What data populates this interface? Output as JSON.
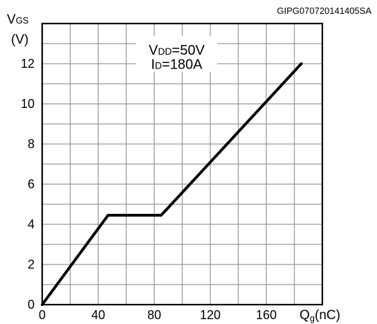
{
  "reference_code": "GIPG070720141405SA",
  "chart_data": {
    "type": "line",
    "xlabel": {
      "main": "Q",
      "sub": "g",
      "unit": "(nC)"
    },
    "ylabel": {
      "main": "V",
      "sub": "GS",
      "unit": "(V)"
    },
    "xlim": [
      0,
      200
    ],
    "ylim": [
      0,
      14
    ],
    "x_ticks": [
      0,
      40,
      80,
      120,
      160
    ],
    "y_ticks": [
      0,
      2,
      4,
      6,
      8,
      10,
      12
    ],
    "grid": true,
    "annotations": [
      {
        "main": "V",
        "sub": "DD",
        "rest": "=50V"
      },
      {
        "main": "I",
        "sub": "D",
        "rest": "=180A"
      }
    ],
    "series": [
      {
        "x": [
          0,
          47,
          85,
          185
        ],
        "y": [
          0,
          4.45,
          4.45,
          12.0
        ]
      }
    ],
    "colors": {
      "line": "#000000",
      "grid": "#999999",
      "frame": "#000000"
    }
  }
}
